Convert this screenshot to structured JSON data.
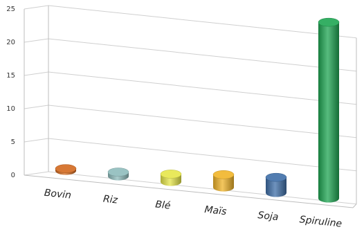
{
  "chart_data": {
    "type": "bar",
    "categories": [
      "Bovin",
      "Riz",
      "Blé",
      "Maïs",
      "Soja",
      "Spiruline"
    ],
    "values": [
      0.3,
      0.6,
      1.1,
      1.8,
      2.2,
      25
    ],
    "ylim": [
      0,
      25
    ],
    "yticks": [
      "0",
      "5",
      "10",
      "15",
      "20",
      "25"
    ],
    "grid": true,
    "legend": "none",
    "colors": [
      "#d2691e",
      "#8fbcbc",
      "#e6e64a",
      "#f0b429",
      "#3f6fa8",
      "#1fa653"
    ]
  }
}
